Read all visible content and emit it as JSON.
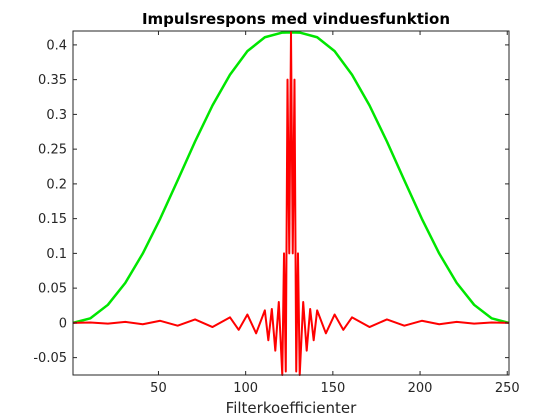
{
  "chart_data": {
    "type": "line",
    "title": "Impulsrespons med vinduesfunktion",
    "xlabel": "Filterkoefficienter",
    "ylabel": "",
    "xlim": [
      1,
      251
    ],
    "ylim": [
      -0.075,
      0.42
    ],
    "xticks": [
      50,
      100,
      150,
      200,
      250
    ],
    "yticks": [
      -0.05,
      0,
      0.05,
      0.1,
      0.15,
      0.2,
      0.25,
      0.3,
      0.35,
      0.4
    ],
    "xtick_labels": [
      "50",
      "100",
      "150",
      "200",
      "250"
    ],
    "ytick_labels": [
      "-0.05",
      "0",
      "0.05",
      "0.1",
      "0.15",
      "0.2",
      "0.25",
      "0.3",
      "0.35",
      "0.4"
    ],
    "grid": false,
    "series": [
      {
        "kind": "window",
        "color": "#00e600",
        "x": [
          1,
          11,
          21,
          31,
          41,
          51,
          61,
          71,
          81,
          91,
          101,
          111,
          121,
          126,
          131,
          141,
          151,
          161,
          171,
          181,
          191,
          201,
          211,
          221,
          231,
          241,
          251
        ],
        "values": [
          0.0,
          0.0066,
          0.026,
          0.0576,
          0.0998,
          0.15,
          0.205,
          0.261,
          0.313,
          0.357,
          0.391,
          0.411,
          0.4177,
          0.418,
          0.4177,
          0.411,
          0.391,
          0.357,
          0.313,
          0.261,
          0.205,
          0.15,
          0.0998,
          0.0576,
          0.026,
          0.0066,
          0.0
        ]
      },
      {
        "kind": "impulse_response",
        "color": "#ff0000",
        "x": [
          1,
          11,
          21,
          31,
          41,
          51,
          61,
          71,
          81,
          91,
          96,
          101,
          106,
          111,
          113,
          115,
          117,
          119,
          121,
          122,
          123,
          124,
          125,
          126,
          127,
          128,
          129,
          130,
          131,
          133,
          135,
          137,
          139,
          141,
          146,
          151,
          156,
          161,
          171,
          181,
          191,
          201,
          211,
          221,
          231,
          241,
          251
        ],
        "values": [
          0.0,
          0.0005,
          -0.001,
          0.0015,
          -0.002,
          0.003,
          -0.004,
          0.005,
          -0.006,
          0.008,
          -0.01,
          0.012,
          -0.015,
          0.018,
          -0.025,
          0.02,
          -0.04,
          0.03,
          -0.075,
          0.1,
          -0.07,
          0.35,
          0.1,
          0.418,
          0.1,
          0.35,
          -0.07,
          0.1,
          -0.075,
          0.03,
          -0.04,
          0.02,
          -0.025,
          0.018,
          -0.015,
          0.012,
          -0.01,
          0.008,
          -0.006,
          0.005,
          -0.004,
          0.003,
          -0.002,
          0.0015,
          -0.001,
          0.0005,
          0.0
        ]
      }
    ]
  }
}
